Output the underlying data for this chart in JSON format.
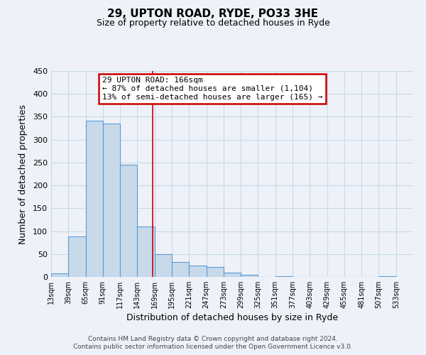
{
  "title": "29, UPTON ROAD, RYDE, PO33 3HE",
  "subtitle": "Size of property relative to detached houses in Ryde",
  "xlabel": "Distribution of detached houses by size in Ryde",
  "ylabel": "Number of detached properties",
  "bar_left_edges": [
    13,
    39,
    65,
    91,
    117,
    143,
    169,
    195,
    221,
    247,
    273,
    299,
    325,
    351,
    377,
    403,
    429,
    455,
    481,
    507
  ],
  "bar_heights": [
    7,
    88,
    341,
    335,
    245,
    110,
    49,
    32,
    25,
    21,
    10,
    5,
    0,
    2,
    0,
    0,
    0,
    0,
    0,
    1
  ],
  "bin_width": 26,
  "bar_facecolor": "#c8d9ea",
  "bar_edgecolor": "#5b9bd5",
  "property_line_x": 166,
  "property_line_color": "#cc0000",
  "annotation_title": "29 UPTON ROAD: 166sqm",
  "annotation_line1": "← 87% of detached houses are smaller (1,104)",
  "annotation_line2": "13% of semi-detached houses are larger (165) →",
  "annotation_box_edgecolor": "#cc0000",
  "annotation_box_facecolor": "#ffffff",
  "xtick_labels": [
    "13sqm",
    "39sqm",
    "65sqm",
    "91sqm",
    "117sqm",
    "143sqm",
    "169sqm",
    "195sqm",
    "221sqm",
    "247sqm",
    "273sqm",
    "299sqm",
    "325sqm",
    "351sqm",
    "377sqm",
    "403sqm",
    "429sqm",
    "455sqm",
    "481sqm",
    "507sqm",
    "533sqm"
  ],
  "ylim": [
    0,
    450
  ],
  "xlim": [
    13,
    559
  ],
  "yticks": [
    0,
    50,
    100,
    150,
    200,
    250,
    300,
    350,
    400,
    450
  ],
  "footer_line1": "Contains HM Land Registry data © Crown copyright and database right 2024.",
  "footer_line2": "Contains public sector information licensed under the Open Government Licence v3.0.",
  "bg_color": "#eef2f8",
  "grid_color": "#c8d9ea"
}
